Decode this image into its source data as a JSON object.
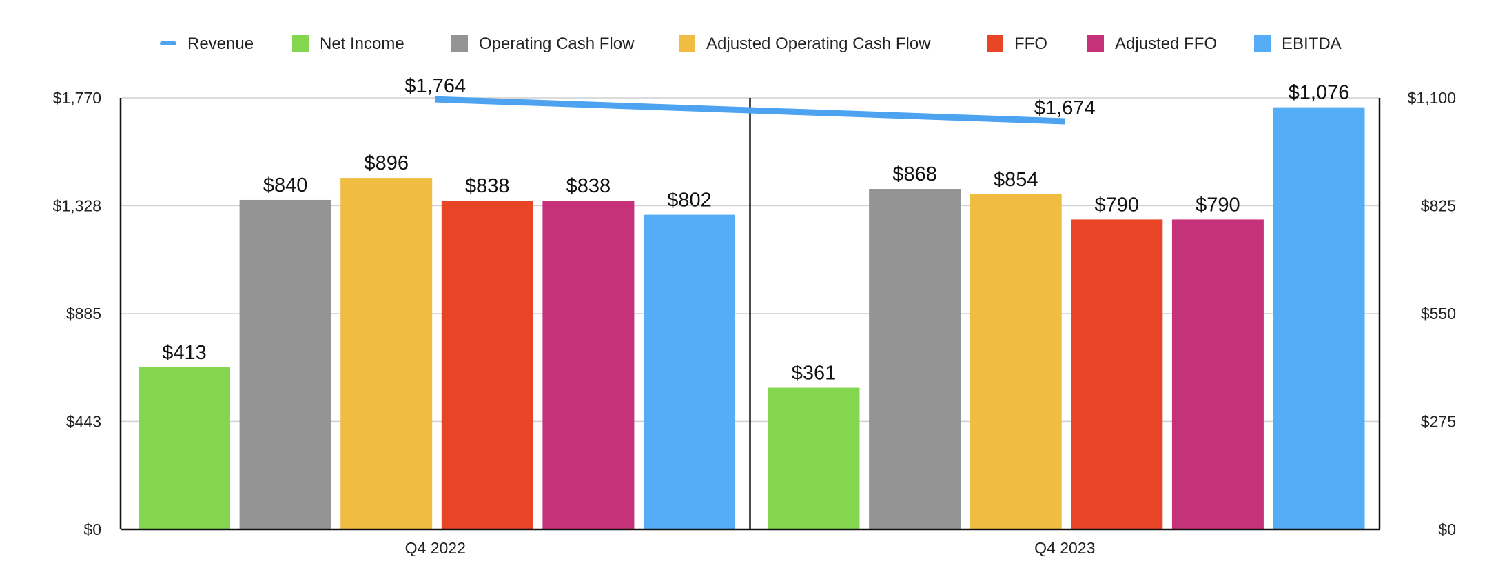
{
  "chart_data": {
    "type": "bar",
    "categories": [
      "Q4 2022",
      "Q4 2023"
    ],
    "series": [
      {
        "name": "Revenue",
        "kind": "line",
        "axis": "left",
        "color": "#4da3f0",
        "values": [
          1764,
          1674
        ],
        "labels": [
          "$1,764",
          "$1,674"
        ]
      },
      {
        "name": "Net Income",
        "kind": "bar",
        "axis": "right",
        "color": "#84d64f",
        "values": [
          413,
          361
        ],
        "labels": [
          "$413",
          "$361"
        ]
      },
      {
        "name": "Operating Cash Flow",
        "kind": "bar",
        "axis": "right",
        "color": "#949494",
        "values": [
          840,
          868
        ],
        "labels": [
          "$840",
          "$868"
        ]
      },
      {
        "name": "Adjusted Operating Cash Flow",
        "kind": "bar",
        "axis": "right",
        "color": "#f0bc42",
        "values": [
          896,
          854
        ],
        "labels": [
          "$896",
          "$854"
        ]
      },
      {
        "name": "FFO",
        "kind": "bar",
        "axis": "right",
        "color": "#e84426",
        "values": [
          838,
          790
        ],
        "labels": [
          "$838",
          "$790"
        ]
      },
      {
        "name": "Adjusted FFO",
        "kind": "bar",
        "axis": "right",
        "color": "#c53279",
        "values": [
          838,
          790
        ],
        "labels": [
          "$838",
          "$790"
        ]
      },
      {
        "name": "EBITDA",
        "kind": "bar",
        "axis": "right",
        "color": "#55acf7",
        "values": [
          802,
          1076
        ],
        "labels": [
          "$802",
          "$1,076"
        ]
      }
    ],
    "y_left": {
      "ylim": [
        0,
        1770
      ],
      "ticks": [
        0,
        443,
        885,
        1328,
        1770
      ],
      "tick_labels": [
        "$0",
        "$443",
        "$885",
        "$1,328",
        "$1,770"
      ]
    },
    "y_right": {
      "ylim": [
        0,
        1100
      ],
      "ticks": [
        0,
        275,
        550,
        825,
        1100
      ],
      "tick_labels": [
        "$0",
        "$275",
        "$550",
        "$825",
        "$1,100"
      ]
    },
    "grid": true,
    "legend": "top"
  }
}
